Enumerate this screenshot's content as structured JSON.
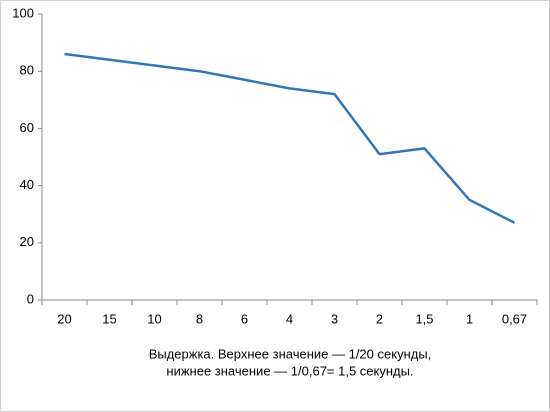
{
  "chart_data": {
    "type": "line",
    "categories": [
      "20",
      "15",
      "10",
      "8",
      "6",
      "4",
      "3",
      "2",
      "1,5",
      "1",
      "0,67"
    ],
    "values": [
      86,
      84,
      82,
      80,
      77,
      74,
      72,
      51,
      53,
      35,
      27
    ],
    "color": "#2f77b5",
    "ylim": [
      0,
      100
    ],
    "yticks": [
      0,
      20,
      40,
      60,
      80,
      100
    ],
    "grid": false,
    "x_label": [
      "Выдержка. Верхнее значение — 1/20 секунды,",
      "нижнее значение — 1/0,67= 1,5 секунды."
    ]
  }
}
